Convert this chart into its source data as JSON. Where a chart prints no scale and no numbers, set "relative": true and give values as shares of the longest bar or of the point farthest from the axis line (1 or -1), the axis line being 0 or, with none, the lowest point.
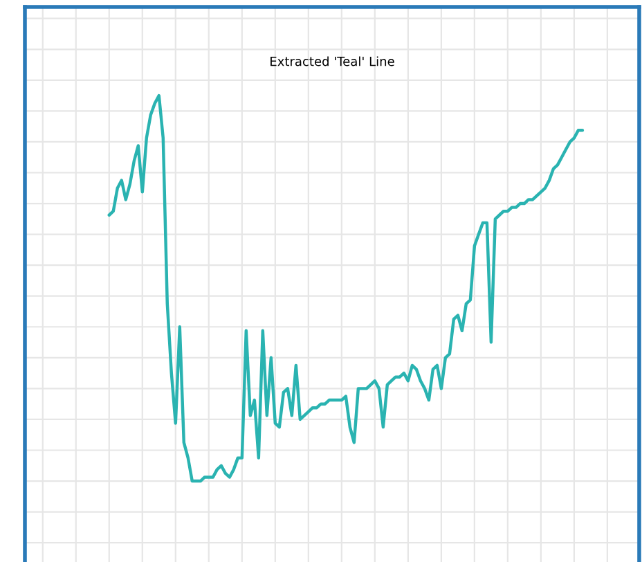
{
  "chart_data": {
    "type": "line",
    "title": "Extracted 'Teal' Line",
    "relative": true,
    "grid": true,
    "legend": false,
    "categories": [
      null,
      null,
      null,
      null,
      null,
      null,
      null,
      null,
      null,
      null,
      null,
      null,
      null,
      null,
      null,
      null,
      null,
      null,
      null,
      null,
      null,
      null,
      null,
      null,
      null,
      null,
      null,
      null,
      null,
      null,
      null,
      null,
      null,
      null,
      null,
      null,
      null,
      null,
      null,
      null,
      null,
      null,
      null,
      null,
      null,
      null,
      null,
      null,
      null,
      null,
      null,
      null,
      null,
      null,
      null,
      null,
      null,
      null,
      null,
      null,
      null,
      null,
      null,
      null,
      null,
      null,
      null,
      null,
      null,
      null,
      null,
      null,
      null,
      null,
      null,
      null,
      null,
      null,
      null,
      null,
      null,
      null,
      null,
      null,
      null,
      null,
      null,
      null,
      null,
      null,
      null,
      null,
      null,
      null,
      null,
      null,
      null,
      null,
      null,
      null,
      null,
      null,
      null,
      null,
      null,
      null,
      null,
      null,
      null,
      null,
      null,
      null,
      null,
      null,
      null
    ],
    "series": [
      {
        "color": "#2ab3b1",
        "values": [
          0.69,
          0.7,
          0.76,
          0.78,
          0.73,
          0.77,
          0.83,
          0.87,
          0.75,
          0.89,
          0.95,
          0.98,
          1.0,
          0.89,
          0.46,
          0.28,
          0.15,
          0.4,
          0.1,
          0.06,
          0,
          0,
          0,
          0.01,
          0.01,
          0.01,
          0.03,
          0.04,
          0.02,
          0.01,
          0.03,
          0.06,
          0.06,
          0.39,
          0.17,
          0.21,
          0.06,
          0.39,
          0.17,
          0.32,
          0.15,
          0.14,
          0.23,
          0.24,
          0.17,
          0.3,
          0.16,
          0.17,
          0.18,
          0.19,
          0.19,
          0.2,
          0.2,
          0.21,
          0.21,
          0.21,
          0.21,
          0.22,
          0.14,
          0.1,
          0.24,
          0.24,
          0.24,
          0.25,
          0.26,
          0.24,
          0.14,
          0.25,
          0.26,
          0.27,
          0.27,
          0.28,
          0.26,
          0.3,
          0.29,
          0.26,
          0.24,
          0.21,
          0.29,
          0.3,
          0.24,
          0.32,
          0.33,
          0.42,
          0.43,
          0.39,
          0.46,
          0.47,
          0.61,
          0.64,
          0.67,
          0.67,
          0.36,
          0.68,
          0.69,
          0.7,
          0.7,
          0.71,
          0.71,
          0.72,
          0.72,
          0.73,
          0.73,
          0.74,
          0.75,
          0.76,
          0.78,
          0.81,
          0.82,
          0.84,
          0.86,
          0.88,
          0.89,
          0.91,
          0.91
        ]
      }
    ]
  }
}
